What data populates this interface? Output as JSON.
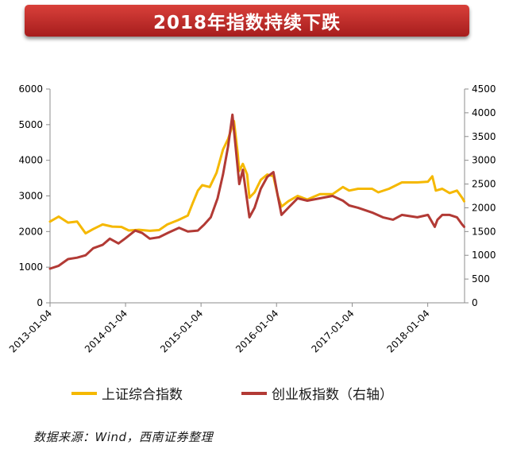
{
  "title": "2018年指数持续下跌",
  "source": "数据来源：Wind，西南证券整理",
  "colors": {
    "sse": "#f5b800",
    "gem": "#b23a35",
    "banner": "#c62828"
  },
  "chart_data": {
    "type": "line",
    "x_tick_labels": [
      "2013-01-04",
      "2014-01-04",
      "2015-01-04",
      "2016-01-04",
      "2017-01-04",
      "2018-01-04"
    ],
    "y_left": {
      "ylim": [
        0,
        6000
      ],
      "ticks": [
        "0",
        "1000",
        "2000",
        "3000",
        "4000",
        "5000",
        "6000"
      ]
    },
    "y_right": {
      "ylim": [
        0,
        4500
      ],
      "ticks": [
        "0",
        "500",
        "1000",
        "1500",
        "2000",
        "2500",
        "3000",
        "3500",
        "4000",
        "4500"
      ]
    },
    "xlim": [
      "2013-01-04",
      "2018-07-01"
    ],
    "series": [
      {
        "name": "上证综合指数",
        "axis": "left",
        "x": [
          "2013-01-04",
          "2013-02-15",
          "2013-04-01",
          "2013-05-15",
          "2013-06-25",
          "2013-08-01",
          "2013-09-15",
          "2013-11-01",
          "2013-12-15",
          "2014-01-20",
          "2014-03-10",
          "2014-05-01",
          "2014-06-15",
          "2014-07-25",
          "2014-09-15",
          "2014-11-01",
          "2014-11-25",
          "2014-12-20",
          "2015-01-10",
          "2015-02-15",
          "2015-03-20",
          "2015-04-20",
          "2015-05-15",
          "2015-06-12",
          "2015-06-30",
          "2015-07-08",
          "2015-07-25",
          "2015-08-15",
          "2015-08-26",
          "2015-09-20",
          "2015-10-20",
          "2015-11-20",
          "2015-12-20",
          "2016-01-10",
          "2016-01-28",
          "2016-03-01",
          "2016-04-15",
          "2016-06-01",
          "2016-08-01",
          "2016-10-01",
          "2016-11-20",
          "2016-12-20",
          "2017-02-01",
          "2017-04-10",
          "2017-05-10",
          "2017-07-01",
          "2017-09-01",
          "2017-11-15",
          "2018-01-05",
          "2018-01-26",
          "2018-02-12",
          "2018-03-15",
          "2018-04-20",
          "2018-05-25",
          "2018-06-19",
          "2018-06-29"
        ],
        "y": [
          2280,
          2420,
          2250,
          2280,
          1950,
          2070,
          2200,
          2140,
          2130,
          2030,
          2050,
          2020,
          2040,
          2200,
          2320,
          2450,
          2800,
          3150,
          3300,
          3250,
          3650,
          4300,
          4600,
          5100,
          4200,
          3700,
          3900,
          3600,
          2950,
          3100,
          3450,
          3600,
          3550,
          3000,
          2700,
          2850,
          3000,
          2900,
          3050,
          3050,
          3250,
          3150,
          3200,
          3200,
          3100,
          3200,
          3380,
          3380,
          3400,
          3550,
          3150,
          3200,
          3080,
          3150,
          2950,
          2850
        ]
      },
      {
        "name": "创业板指数（右轴）",
        "axis": "right",
        "x": [
          "2013-01-04",
          "2013-02-15",
          "2013-04-01",
          "2013-05-15",
          "2013-06-25",
          "2013-08-01",
          "2013-09-15",
          "2013-10-20",
          "2013-12-01",
          "2014-01-01",
          "2014-02-20",
          "2014-03-25",
          "2014-05-01",
          "2014-06-15",
          "2014-08-01",
          "2014-09-20",
          "2014-11-01",
          "2014-12-20",
          "2015-01-20",
          "2015-02-20",
          "2015-03-25",
          "2015-04-20",
          "2015-05-15",
          "2015-06-05",
          "2015-06-20",
          "2015-07-08",
          "2015-07-25",
          "2015-08-26",
          "2015-09-20",
          "2015-10-20",
          "2015-11-20",
          "2015-12-20",
          "2016-01-10",
          "2016-01-28",
          "2016-03-01",
          "2016-04-15",
          "2016-06-01",
          "2016-08-01",
          "2016-10-01",
          "2016-11-20",
          "2016-12-20",
          "2017-02-01",
          "2017-04-10",
          "2017-06-01",
          "2017-07-20",
          "2017-09-01",
          "2017-11-15",
          "2018-01-05",
          "2018-02-07",
          "2018-02-20",
          "2018-03-15",
          "2018-04-20",
          "2018-05-25",
          "2018-06-19",
          "2018-06-29"
        ],
        "y": [
          720,
          780,
          920,
          950,
          1000,
          1150,
          1220,
          1350,
          1250,
          1350,
          1520,
          1470,
          1350,
          1380,
          1480,
          1580,
          1500,
          1520,
          1650,
          1800,
          2200,
          2700,
          3300,
          3960,
          3300,
          2500,
          2800,
          1800,
          2000,
          2400,
          2650,
          2750,
          2250,
          1850,
          2000,
          2200,
          2150,
          2200,
          2250,
          2150,
          2050,
          2000,
          1900,
          1800,
          1750,
          1850,
          1800,
          1850,
          1600,
          1750,
          1850,
          1850,
          1800,
          1650,
          1600
        ]
      }
    ],
    "legend_position": "bottom",
    "grid": false
  }
}
